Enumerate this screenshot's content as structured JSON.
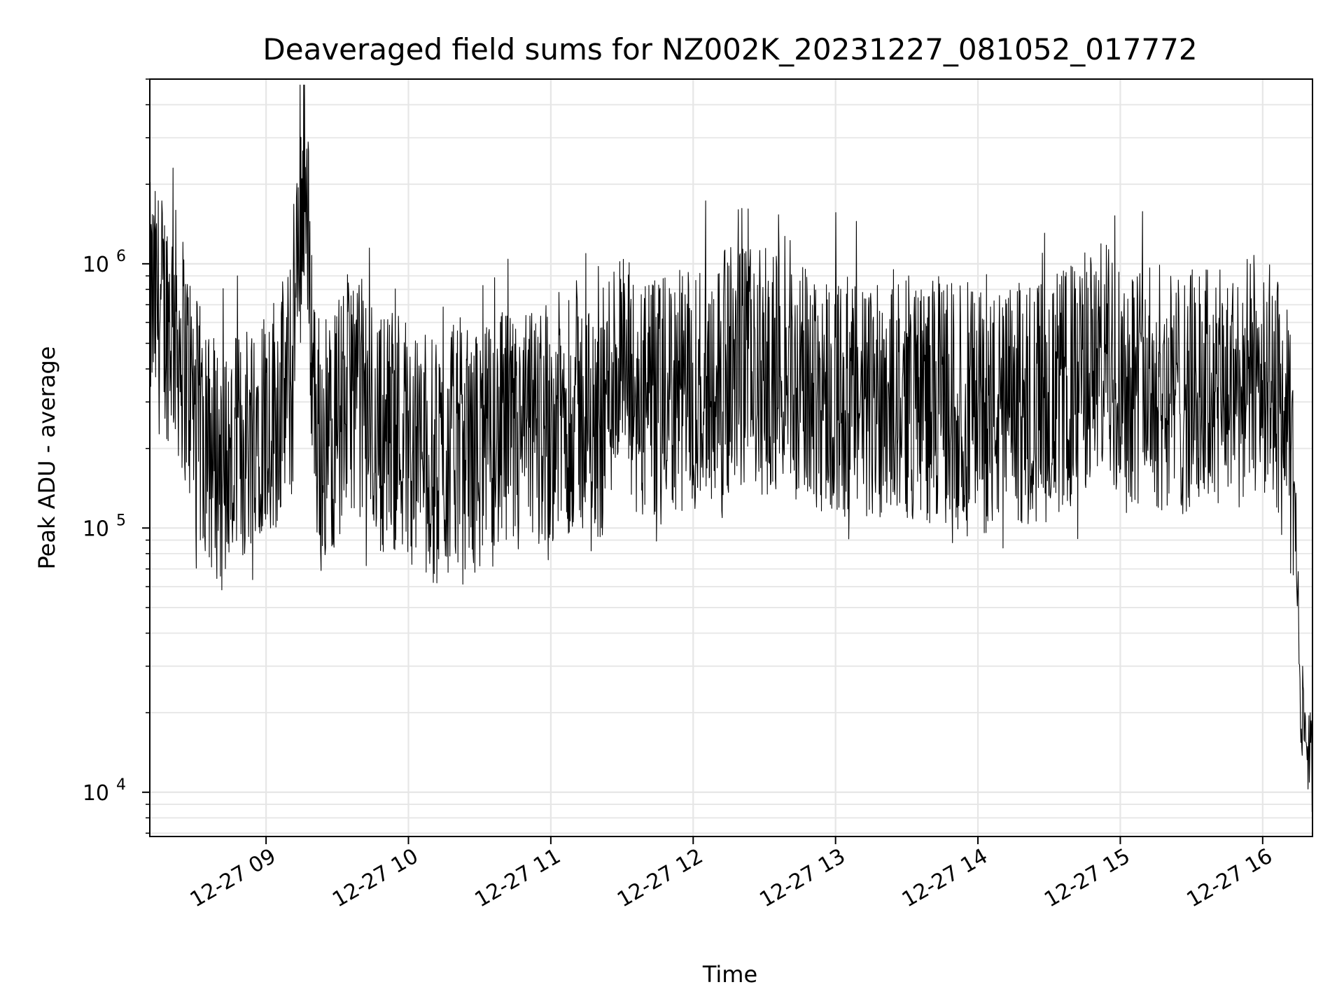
{
  "chart_data": {
    "type": "line",
    "title": "Deaveraged field sums for NZ002K_20231227_081052_017772",
    "xlabel": "Time",
    "ylabel": "Peak ADU - average",
    "yscale": "log",
    "ylim": [
      6800,
      5000000
    ],
    "xlim": [
      "2023-12-27 08:11",
      "2023-12-27 16:21"
    ],
    "x_ticks": [
      "12-27 09",
      "12-27 10",
      "12-27 11",
      "12-27 12",
      "12-27 13",
      "12-27 14",
      "12-27 15",
      "12-27 16"
    ],
    "y_ticks": [
      {
        "value": 10000,
        "base": "10",
        "exp": "4"
      },
      {
        "value": 100000,
        "base": "10",
        "exp": "5"
      },
      {
        "value": 1000000,
        "base": "10",
        "exp": "6"
      }
    ],
    "grid": true,
    "line_color": "#000000",
    "grid_color": "#e6e6e6",
    "series": [
      {
        "x": [
          "08:11",
          "08:16",
          "08:21",
          "08:26",
          "08:31",
          "08:36",
          "08:41",
          "08:46",
          "08:51",
          "08:56",
          "09:01",
          "09:06",
          "09:11",
          "09:16",
          "09:21",
          "09:26",
          "09:31",
          "09:36",
          "09:41",
          "09:46",
          "09:51",
          "09:56",
          "10:01",
          "10:06",
          "10:11",
          "10:16",
          "10:21",
          "10:26",
          "10:31",
          "10:36",
          "10:41",
          "10:46",
          "10:51",
          "10:56",
          "11:01",
          "11:06",
          "11:11",
          "11:16",
          "11:21",
          "11:26",
          "11:31",
          "11:36",
          "11:41",
          "11:46",
          "11:51",
          "11:56",
          "12:01",
          "12:06",
          "12:11",
          "12:16",
          "12:21",
          "12:26",
          "12:31",
          "12:36",
          "12:41",
          "12:46",
          "12:51",
          "12:56",
          "13:01",
          "13:06",
          "13:11",
          "13:16",
          "13:21",
          "13:26",
          "13:31",
          "13:36",
          "13:41",
          "13:46",
          "13:51",
          "13:56",
          "14:01",
          "14:06",
          "14:11",
          "14:16",
          "14:21",
          "14:26",
          "14:31",
          "14:36",
          "14:41",
          "14:46",
          "14:51",
          "14:56",
          "15:01",
          "15:06",
          "15:11",
          "15:16",
          "15:21",
          "15:26",
          "15:31",
          "15:36",
          "15:41",
          "15:46",
          "15:51",
          "15:56",
          "16:01",
          "16:06",
          "16:11",
          "16:14",
          "16:16",
          "16:18",
          "16:21"
        ],
        "y": [
          700000,
          650000,
          600000,
          420000,
          250000,
          200000,
          180000,
          170000,
          210000,
          280000,
          260000,
          300000,
          350000,
          2500000,
          240000,
          220000,
          260000,
          350000,
          300000,
          240000,
          230000,
          250000,
          210000,
          200000,
          170000,
          180000,
          220000,
          190000,
          200000,
          210000,
          230000,
          200000,
          240000,
          250000,
          260000,
          270000,
          300000,
          230000,
          250000,
          400000,
          380000,
          300000,
          300000,
          290000,
          330000,
          320000,
          340000,
          360000,
          380000,
          400000,
          410000,
          380000,
          390000,
          370000,
          360000,
          340000,
          350000,
          330000,
          320000,
          300000,
          290000,
          300000,
          340000,
          330000,
          310000,
          320000,
          300000,
          310000,
          290000,
          300000,
          280000,
          270000,
          280000,
          290000,
          300000,
          310000,
          300000,
          330000,
          350000,
          400000,
          420000,
          410000,
          380000,
          360000,
          350000,
          340000,
          330000,
          320000,
          330000,
          340000,
          320000,
          330000,
          350000,
          380000,
          400000,
          300000,
          220000,
          100000,
          22000,
          17000,
          12000
        ]
      }
    ]
  }
}
